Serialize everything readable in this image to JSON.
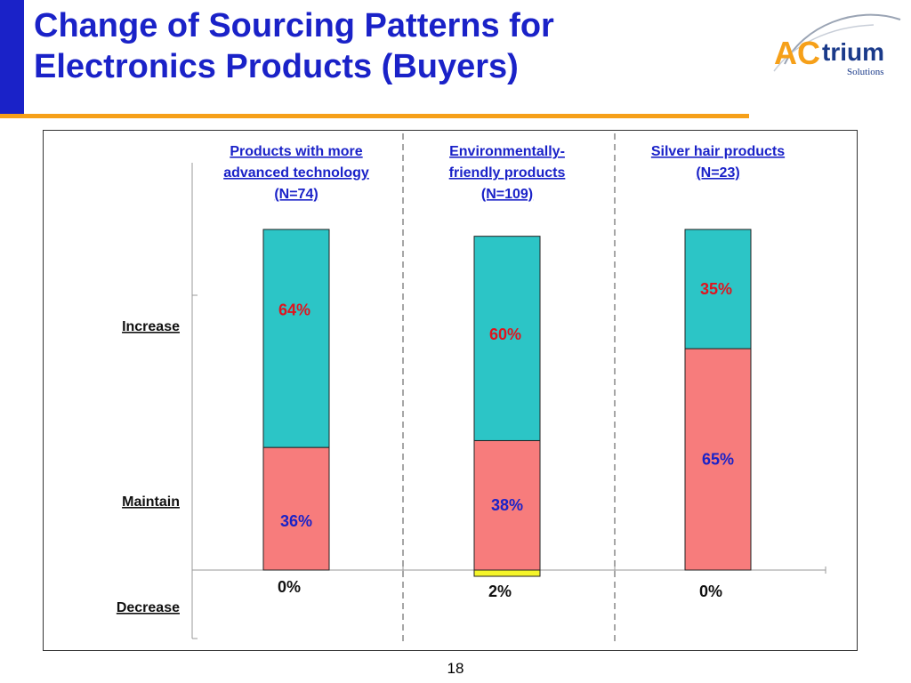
{
  "slide": {
    "title_line1": "Change of Sourcing Patterns for",
    "title_line2": "Electronics Products (Buyers)",
    "page_number": "18"
  },
  "logo": {
    "brand_part1": "AC",
    "brand_part2": "trium",
    "tagline": "Solutions"
  },
  "colors": {
    "title_blue": "#1a22c8",
    "header_blue": "#1a22c8",
    "orange": "#f6a019",
    "increase": "#2cc5c6",
    "maintain": "#f77c7c",
    "decrease": "#f5f52a",
    "increase_label": "#e0141e",
    "maintain_label": "#1a22c8"
  },
  "chart_data": {
    "type": "bar",
    "stacked": true,
    "row_labels": [
      "Increase",
      "Maintain",
      "Decrease"
    ],
    "categories": [
      {
        "lines": [
          "Products with more",
          "advanced technology",
          " (N=74)"
        ]
      },
      {
        "lines": [
          "Environmentally-",
          "friendly  products",
          " (N=109)"
        ]
      },
      {
        "lines": [
          "Silver hair products",
          "(N=23)"
        ]
      }
    ],
    "series": [
      {
        "name": "Decrease",
        "values": [
          0,
          2,
          0
        ],
        "labels": [
          "0%",
          "2%",
          "0%"
        ]
      },
      {
        "name": "Maintain",
        "values": [
          36,
          38,
          65
        ],
        "labels": [
          "36%",
          "38%",
          "65%"
        ]
      },
      {
        "name": "Increase",
        "values": [
          64,
          60,
          35
        ],
        "labels": [
          "64%",
          "60%",
          "35%"
        ]
      }
    ],
    "ylim": [
      0,
      100
    ]
  }
}
